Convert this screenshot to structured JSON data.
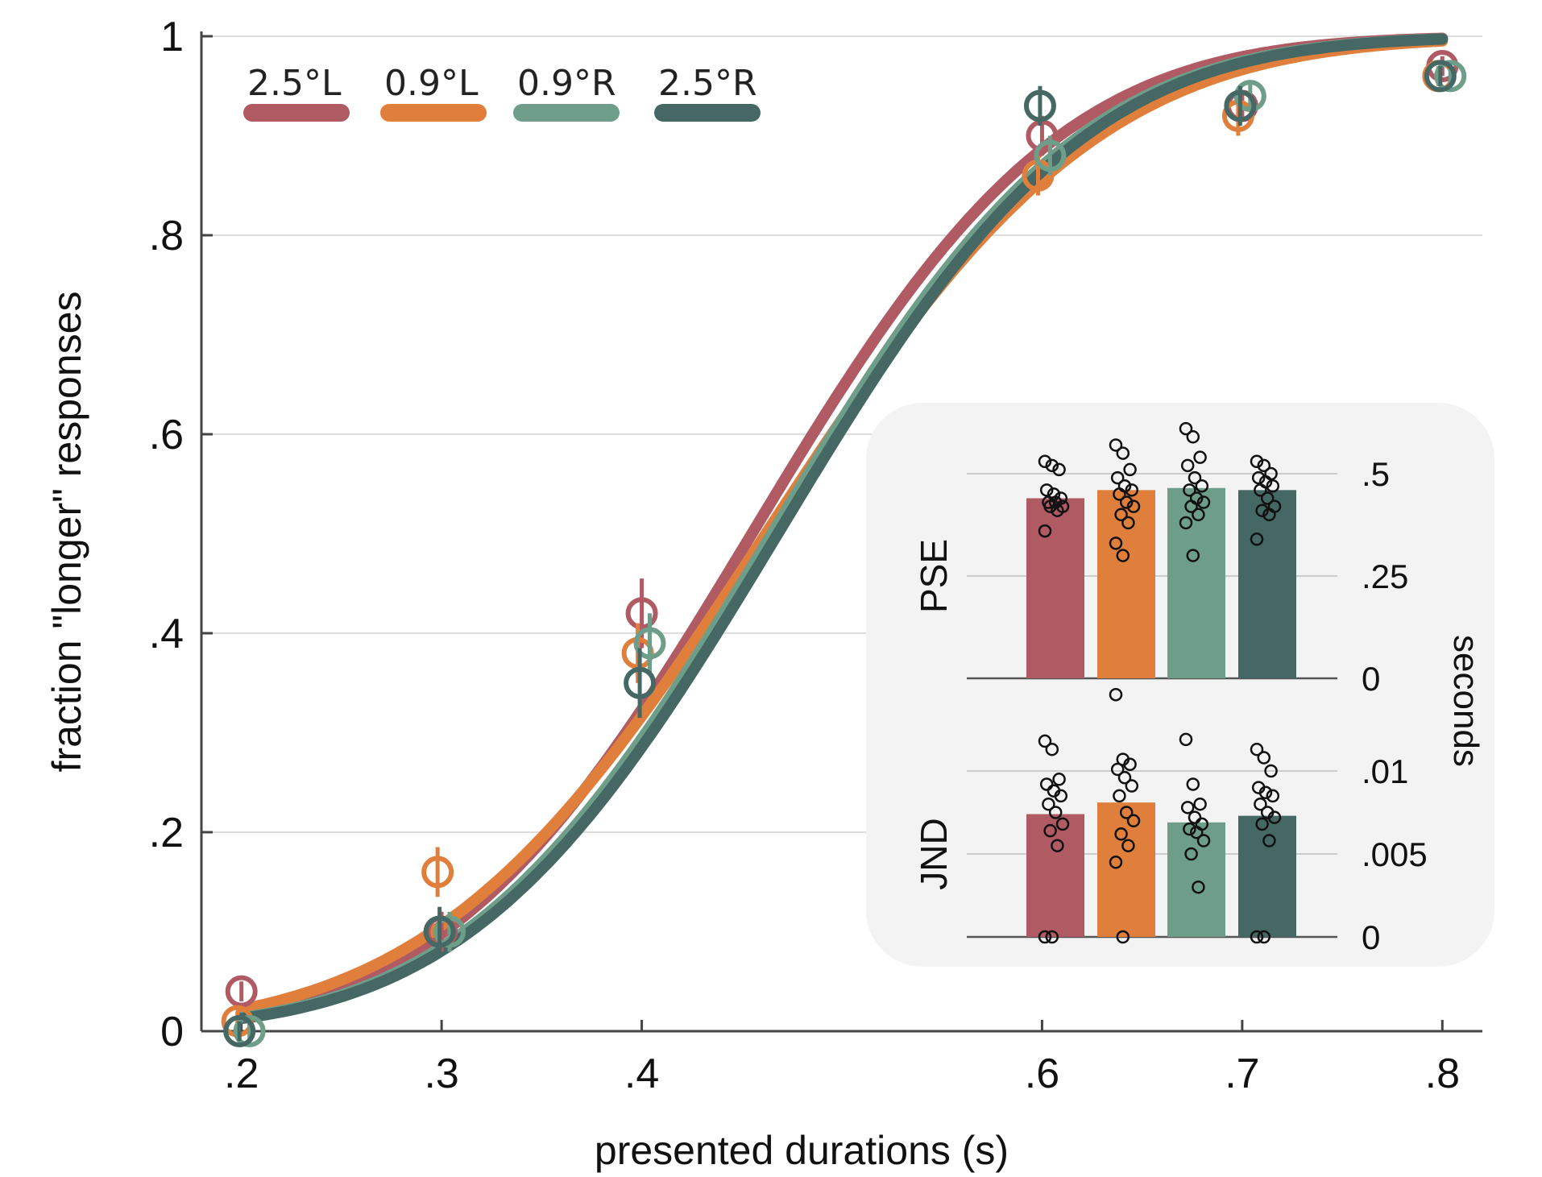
{
  "colors": {
    "c1": "#b05a64",
    "c2": "#e07f3c",
    "c3": "#6e9e8a",
    "c4": "#466864",
    "grid": "#dddddd",
    "axis": "#444444",
    "inset_bg": "#f3f3f3"
  },
  "chart_data": [
    {
      "type": "line",
      "title": "",
      "xlabel": "presented durations (s)",
      "ylabel": "fraction  \"longer\" responses",
      "xlim": [
        0.18,
        0.82
      ],
      "ylim": [
        0,
        1
      ],
      "x_ticks": [
        0.2,
        0.3,
        0.4,
        0.6,
        0.7,
        0.8
      ],
      "x_tick_labels": [
        ".2",
        ".3",
        ".4",
        ".6",
        ".7",
        ".8"
      ],
      "y_ticks": [
        0,
        0.2,
        0.4,
        0.6,
        0.8,
        1
      ],
      "y_tick_labels": [
        "0",
        ".2",
        ".4",
        ".6",
        ".8",
        "1"
      ],
      "grid": true,
      "legend_position": "top-left",
      "series": [
        {
          "name": "2.5°L",
          "color_key": "c1",
          "x": [
            0.2,
            0.3,
            0.4,
            0.6,
            0.7,
            0.8
          ],
          "y": [
            0.04,
            0.1,
            0.42,
            0.9,
            0.93,
            0.97
          ],
          "err": [
            0.01,
            0.02,
            0.035,
            0.02,
            0.015,
            0.01
          ],
          "fit": {
            "mu": 0.455,
            "sigma": 0.12
          },
          "x_offset": 0.0
        },
        {
          "name": "0.9°L",
          "color_key": "c2",
          "x": [
            0.2,
            0.3,
            0.4,
            0.6,
            0.7,
            0.8
          ],
          "y": [
            0.01,
            0.16,
            0.38,
            0.86,
            0.92,
            0.96
          ],
          "err": [
            0.01,
            0.025,
            0.03,
            0.02,
            0.02,
            0.01
          ],
          "fit": {
            "mu": 0.462,
            "sigma": 0.13
          },
          "x_offset": -0.002
        },
        {
          "name": "0.9°R",
          "color_key": "c3",
          "x": [
            0.2,
            0.3,
            0.4,
            0.6,
            0.7,
            0.8
          ],
          "y": [
            0.0,
            0.1,
            0.39,
            0.88,
            0.94,
            0.96
          ],
          "err": [
            0.01,
            0.02,
            0.03,
            0.02,
            0.015,
            0.01
          ],
          "fit": {
            "mu": 0.465,
            "sigma": 0.12
          },
          "x_offset": 0.004
        },
        {
          "name": "2.5°R",
          "color_key": "c4",
          "x": [
            0.2,
            0.3,
            0.4,
            0.6,
            0.7,
            0.8
          ],
          "y": [
            0.0,
            0.1,
            0.35,
            0.93,
            0.93,
            0.96
          ],
          "err": [
            0.01,
            0.025,
            0.035,
            0.02,
            0.02,
            0.01
          ],
          "fit": {
            "mu": 0.468,
            "sigma": 0.12
          },
          "x_offset": -0.001
        }
      ]
    },
    {
      "type": "bar",
      "title": "PSE",
      "categories": [
        "2.5°L",
        "0.9°L",
        "0.9°R",
        "2.5°R"
      ],
      "ylim": [
        0,
        0.5
      ],
      "y_ticks": [
        0,
        0.25,
        0.5
      ],
      "y_tick_labels": [
        "0",
        ".25",
        ".5"
      ],
      "values": [
        0.44,
        0.46,
        0.465,
        0.46
      ],
      "points": [
        [
          0.53,
          0.52,
          0.51,
          0.46,
          0.45,
          0.44,
          0.43,
          0.43,
          0.42,
          0.42,
          0.41,
          0.36
        ],
        [
          0.57,
          0.55,
          0.51,
          0.49,
          0.47,
          0.46,
          0.45,
          0.43,
          0.42,
          0.4,
          0.38,
          0.33,
          0.3
        ],
        [
          0.61,
          0.59,
          0.54,
          0.52,
          0.49,
          0.47,
          0.46,
          0.44,
          0.43,
          0.42,
          0.4,
          0.38,
          0.3
        ],
        [
          0.53,
          0.52,
          0.5,
          0.49,
          0.48,
          0.47,
          0.46,
          0.44,
          0.42,
          0.41,
          0.4,
          0.34
        ]
      ]
    },
    {
      "type": "bar",
      "title": "JND",
      "categories": [
        "2.5°L",
        "0.9°L",
        "0.9°R",
        "2.5°R"
      ],
      "ylim": [
        0,
        0.01
      ],
      "y_ticks": [
        0,
        0.005,
        0.01
      ],
      "y_tick_labels": [
        "0",
        ".005",
        ".01"
      ],
      "values": [
        0.0074,
        0.0081,
        0.0069,
        0.0073
      ],
      "points": [
        [
          0.0118,
          0.0113,
          0.0095,
          0.0092,
          0.0088,
          0.0085,
          0.008,
          0.0075,
          0.0068,
          0.0064,
          0.0055,
          0.0,
          0.0
        ],
        [
          0.0146,
          0.0107,
          0.0104,
          0.0101,
          0.0096,
          0.0091,
          0.0085,
          0.0075,
          0.007,
          0.0062,
          0.0055,
          0.0045,
          0.0
        ],
        [
          0.0119,
          0.0092,
          0.008,
          0.0078,
          0.0072,
          0.0068,
          0.0065,
          0.0063,
          0.0058,
          0.005,
          0.003
        ],
        [
          0.0113,
          0.0108,
          0.01,
          0.009,
          0.0087,
          0.0085,
          0.008,
          0.0075,
          0.0072,
          0.0068,
          0.0058,
          0.0,
          0.0
        ]
      ]
    }
  ],
  "inset": {
    "right_label": "seconds"
  }
}
